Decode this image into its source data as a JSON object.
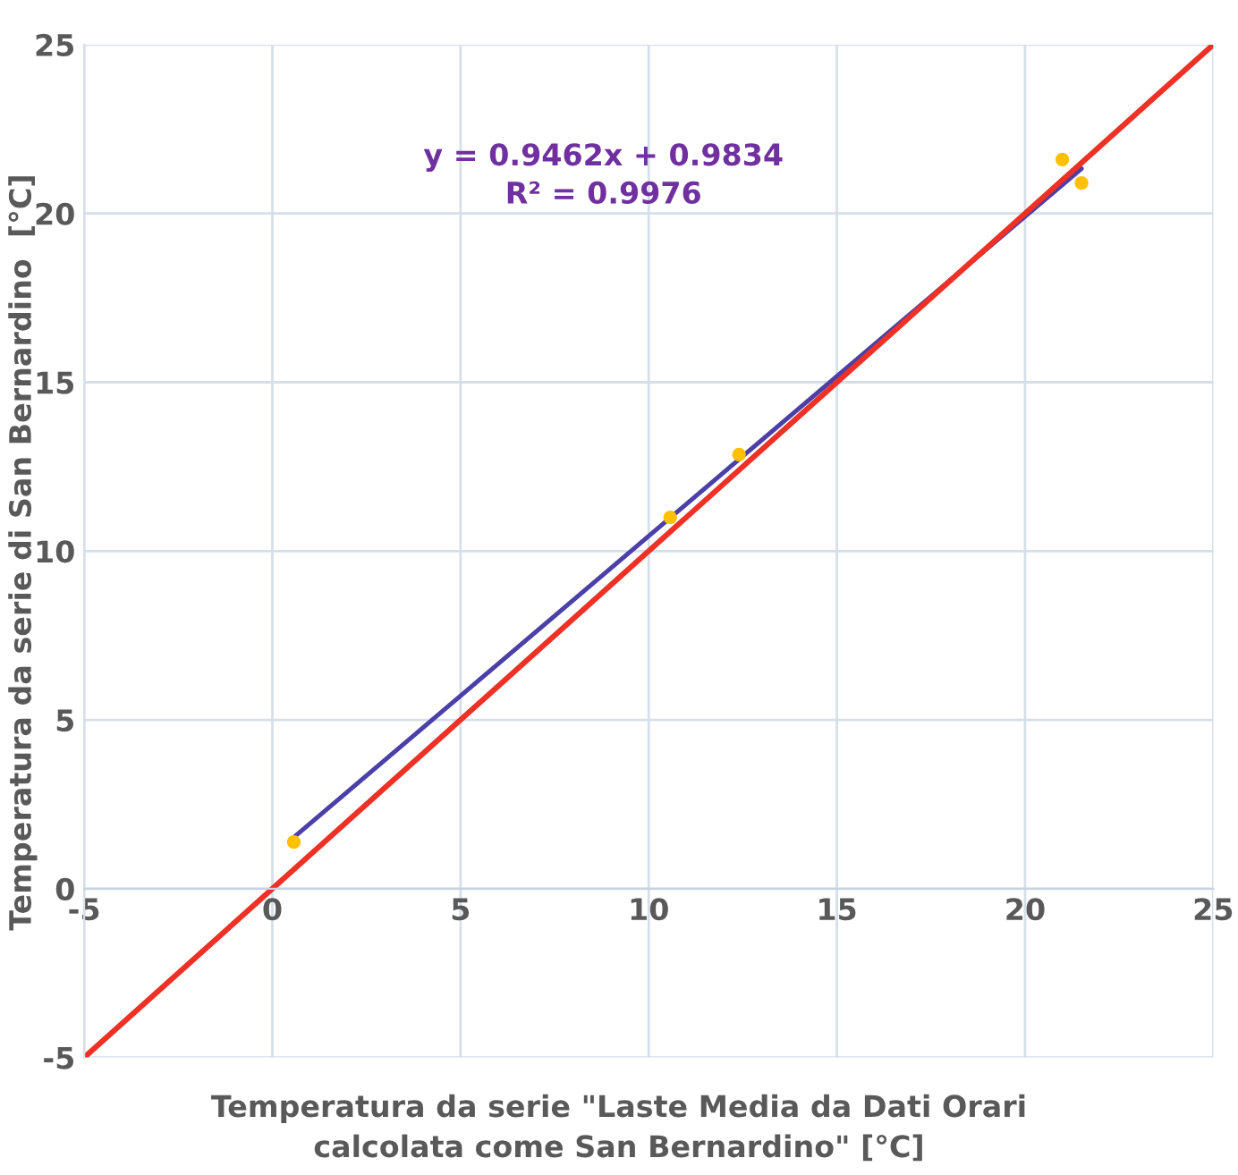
{
  "chart_data": {
    "type": "scatter",
    "xlabel": "Temperatura da serie \"Laste Media da Dati Orari\ncalcolata come San Bernardino\" [°C]",
    "ylabel": "Temperatura da serie di San Bernardino  [°C]",
    "series": [
      {
        "color": "#ffc000",
        "x": [
          0.57,
          10.57,
          12.4,
          20.99,
          21.5
        ],
        "values": [
          1.38,
          11.0,
          12.86,
          21.6,
          20.9
        ],
        "marker": "circle"
      },
      {
        "type": "line",
        "color": "#4b3fa8",
        "x": [
          0.57,
          21.5
        ],
        "values": [
          1.52,
          21.33
        ],
        "marker": "none"
      },
      {
        "type": "line",
        "color": "#ee3124",
        "x": [
          -5,
          25
        ],
        "values": [
          -5,
          25
        ],
        "marker": "none"
      }
    ],
    "annotations": [
      "y = 0.9462x + 0.9834\nR² = 0.9976"
    ],
    "xlim": [
      -5,
      25
    ],
    "ylim": [
      -5,
      25
    ],
    "xticks": [
      -5,
      0,
      5,
      10,
      15,
      20,
      25
    ],
    "yticks": [
      -5,
      0,
      5,
      10,
      15,
      20,
      25
    ],
    "grid": true,
    "legend": false
  }
}
